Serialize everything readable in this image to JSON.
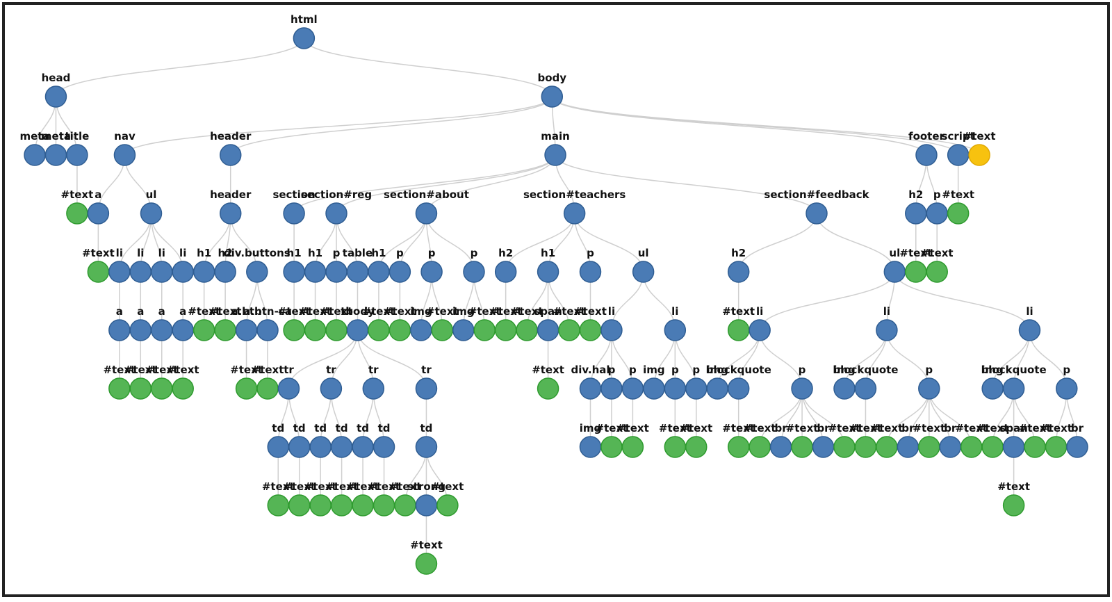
{
  "colors": {
    "element": "#4a7bb5",
    "text": "#55b555",
    "highlight": "#f7c20f"
  },
  "tree": {
    "label": "html",
    "children": [
      {
        "label": "head",
        "children": [
          {
            "label": "meta"
          },
          {
            "label": "meta"
          },
          {
            "label": "title",
            "children": [
              {
                "label": "#text"
              }
            ]
          }
        ]
      },
      {
        "label": "body",
        "children": [
          {
            "label": "nav",
            "children": [
              {
                "label": "a",
                "children": [
                  {
                    "label": "#text"
                  }
                ]
              },
              {
                "label": "ul",
                "children": [
                  {
                    "label": "li",
                    "children": [
                      {
                        "label": "a",
                        "children": [
                          {
                            "label": "#text"
                          }
                        ]
                      }
                    ]
                  },
                  {
                    "label": "li",
                    "children": [
                      {
                        "label": "a",
                        "children": [
                          {
                            "label": "#text"
                          }
                        ]
                      }
                    ]
                  },
                  {
                    "label": "li",
                    "children": [
                      {
                        "label": "a",
                        "children": [
                          {
                            "label": "#text"
                          }
                        ]
                      }
                    ]
                  },
                  {
                    "label": "li",
                    "children": [
                      {
                        "label": "a",
                        "children": [
                          {
                            "label": "#text"
                          }
                        ]
                      }
                    ]
                  }
                ]
              }
            ]
          },
          {
            "label": "header",
            "children": [
              {
                "label": "header",
                "children": [
                  {
                    "label": "h1",
                    "children": [
                      {
                        "label": "#text"
                      }
                    ]
                  },
                  {
                    "label": "h2",
                    "children": [
                      {
                        "label": "#text"
                      }
                    ]
                  },
                  {
                    "label": "div.buttons",
                    "children": [
                      {
                        "label": "a.btn",
                        "children": [
                          {
                            "label": "#text"
                          }
                        ]
                      },
                      {
                        "label": "a.btn-ca",
                        "children": [
                          {
                            "label": "#text"
                          }
                        ]
                      }
                    ]
                  }
                ]
              }
            ]
          },
          {
            "label": "main",
            "children": [
              {
                "label": "section",
                "children": [
                  {
                    "label": "h1",
                    "children": [
                      {
                        "label": "#text"
                      }
                    ]
                  }
                ]
              },
              {
                "label": "section#reg",
                "children": [
                  {
                    "label": "h1",
                    "children": [
                      {
                        "label": "#text"
                      }
                    ]
                  },
                  {
                    "label": "p",
                    "children": [
                      {
                        "label": "#text"
                      }
                    ]
                  },
                  {
                    "label": "table",
                    "children": [
                      {
                        "label": "tbody",
                        "children": [
                          {
                            "label": "tr",
                            "children": [
                              {
                                "label": "td",
                                "children": [
                                  {
                                    "label": "#text"
                                  }
                                ]
                              },
                              {
                                "label": "td",
                                "children": [
                                  {
                                    "label": "#text"
                                  }
                                ]
                              }
                            ]
                          },
                          {
                            "label": "tr",
                            "children": [
                              {
                                "label": "td",
                                "children": [
                                  {
                                    "label": "#text"
                                  }
                                ]
                              },
                              {
                                "label": "td",
                                "children": [
                                  {
                                    "label": "#text"
                                  }
                                ]
                              }
                            ]
                          },
                          {
                            "label": "tr",
                            "children": [
                              {
                                "label": "td",
                                "children": [
                                  {
                                    "label": "#text"
                                  }
                                ]
                              },
                              {
                                "label": "td",
                                "children": [
                                  {
                                    "label": "#text"
                                  }
                                ]
                              }
                            ]
                          },
                          {
                            "label": "tr",
                            "children": [
                              {
                                "label": "td",
                                "children": [
                                  {
                                    "label": "#text"
                                  },
                                  {
                                    "label": "strong",
                                    "children": [
                                      {
                                        "label": "#text"
                                      }
                                    ]
                                  },
                                  {
                                    "label": "#text"
                                  }
                                ]
                              }
                            ]
                          }
                        ]
                      }
                    ]
                  }
                ]
              },
              {
                "label": "section#about",
                "children": [
                  {
                    "label": "h1",
                    "children": [
                      {
                        "label": "#text"
                      }
                    ]
                  },
                  {
                    "label": "p",
                    "children": [
                      {
                        "label": "#text"
                      }
                    ]
                  },
                  {
                    "label": "p",
                    "children": [
                      {
                        "label": "img"
                      },
                      {
                        "label": "#text"
                      }
                    ]
                  },
                  {
                    "label": "p",
                    "children": [
                      {
                        "label": "img"
                      },
                      {
                        "label": "#text"
                      }
                    ]
                  }
                ]
              },
              {
                "label": "section#teachers",
                "children": [
                  {
                    "label": "h2",
                    "children": [
                      {
                        "label": "#text"
                      }
                    ]
                  },
                  {
                    "label": "h1",
                    "children": [
                      {
                        "label": "#text"
                      },
                      {
                        "label": "span",
                        "children": [
                          {
                            "label": "#text"
                          }
                        ]
                      },
                      {
                        "label": "#text"
                      }
                    ]
                  },
                  {
                    "label": "p",
                    "children": [
                      {
                        "label": "#text"
                      }
                    ]
                  },
                  {
                    "label": "ul",
                    "children": [
                      {
                        "label": "li",
                        "children": [
                          {
                            "label": "div.hal",
                            "children": [
                              {
                                "label": "img"
                              }
                            ]
                          },
                          {
                            "label": "p",
                            "children": [
                              {
                                "label": "#text"
                              }
                            ]
                          },
                          {
                            "label": "p",
                            "children": [
                              {
                                "label": "#text"
                              }
                            ]
                          }
                        ]
                      },
                      {
                        "label": "li",
                        "children": [
                          {
                            "label": "img"
                          },
                          {
                            "label": "p",
                            "children": [
                              {
                                "label": "#text"
                              }
                            ]
                          },
                          {
                            "label": "p",
                            "children": [
                              {
                                "label": "#text"
                              }
                            ]
                          }
                        ]
                      }
                    ]
                  }
                ]
              },
              {
                "label": "section#feedback",
                "children": [
                  {
                    "label": "h2",
                    "children": [
                      {
                        "label": "#text"
                      }
                    ]
                  },
                  {
                    "label": "ul",
                    "children": [
                      {
                        "label": "li",
                        "children": [
                          {
                            "label": "img"
                          },
                          {
                            "label": "blockquote",
                            "children": [
                              {
                                "label": "#text"
                              }
                            ]
                          },
                          {
                            "label": "p",
                            "children": [
                              {
                                "label": "#text"
                              },
                              {
                                "label": "br"
                              },
                              {
                                "label": "#text"
                              },
                              {
                                "label": "br"
                              },
                              {
                                "label": "#text"
                              }
                            ]
                          }
                        ]
                      },
                      {
                        "label": "li",
                        "children": [
                          {
                            "label": "img"
                          },
                          {
                            "label": "blockquote",
                            "children": [
                              {
                                "label": "#text"
                              }
                            ]
                          },
                          {
                            "label": "p",
                            "children": [
                              {
                                "label": "#text"
                              },
                              {
                                "label": "br"
                              },
                              {
                                "label": "#text"
                              },
                              {
                                "label": "br"
                              },
                              {
                                "label": "#text"
                              }
                            ]
                          }
                        ]
                      },
                      {
                        "label": "li",
                        "children": [
                          {
                            "label": "img"
                          },
                          {
                            "label": "blockquote",
                            "children": [
                              {
                                "label": "#text"
                              },
                              {
                                "label": "span",
                                "children": [
                                  {
                                    "label": "#text"
                                  }
                                ]
                              },
                              {
                                "label": "#text"
                              }
                            ]
                          },
                          {
                            "label": "p",
                            "children": [
                              {
                                "label": "#text"
                              },
                              {
                                "label": "br"
                              }
                            ]
                          }
                        ]
                      }
                    ]
                  }
                ]
              }
            ]
          },
          {
            "label": "footer",
            "children": [
              {
                "label": "h2",
                "children": [
                  {
                    "label": "#text"
                  }
                ]
              },
              {
                "label": "p",
                "children": [
                  {
                    "label": "#text"
                  }
                ]
              }
            ]
          },
          {
            "label": "script",
            "children": [
              {
                "label": "#text"
              }
            ]
          },
          {
            "label": "#text",
            "highlighted": true
          }
        ]
      }
    ]
  }
}
